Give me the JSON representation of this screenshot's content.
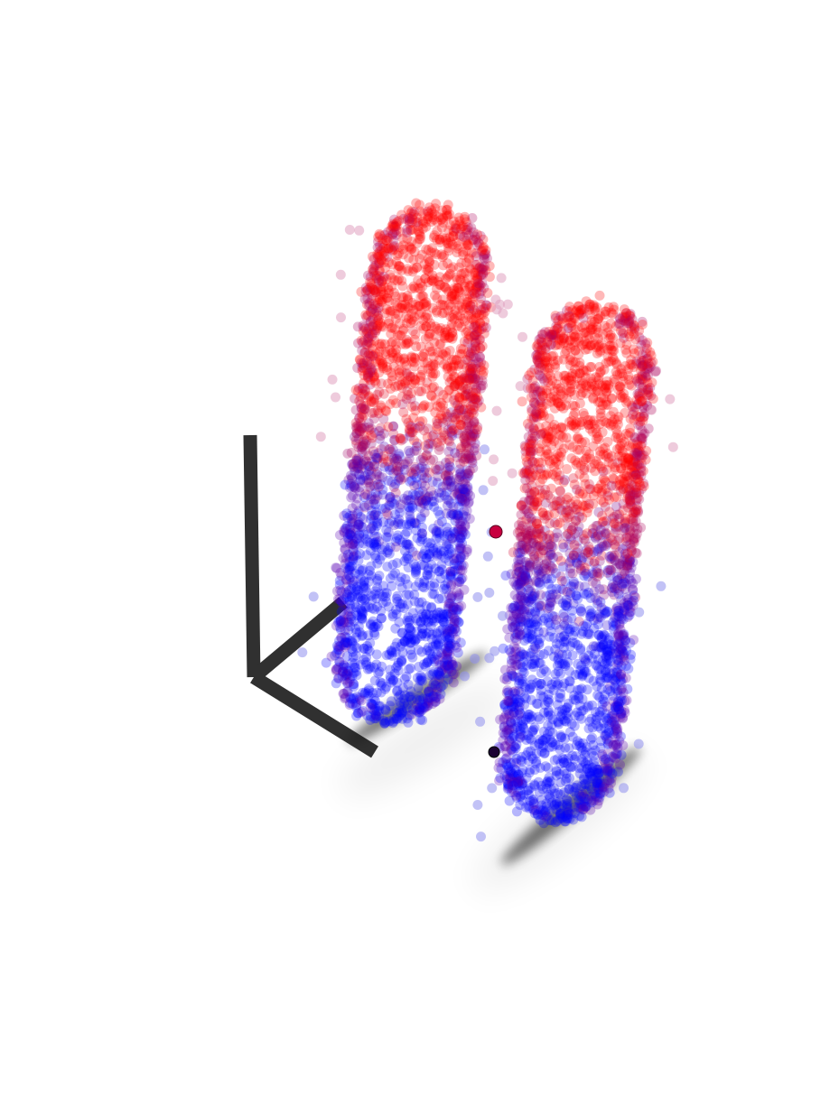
{
  "scene": {
    "description_free": true,
    "colors": {
      "background": "#ffffff",
      "top_color": "#ff0000",
      "bottom_color": "#0000ff",
      "mixed_color": "#80008a",
      "axes_color": "#1a1a1a",
      "shadow_color": "#000000",
      "marker_red": "#c80040",
      "marker_dark": "#1a0033"
    },
    "clusters": [
      {
        "name": "left-capsule",
        "point_count": 2600
      },
      {
        "name": "right-capsule",
        "point_count": 2600
      }
    ],
    "axes": {
      "visible": true,
      "count": 3
    }
  }
}
